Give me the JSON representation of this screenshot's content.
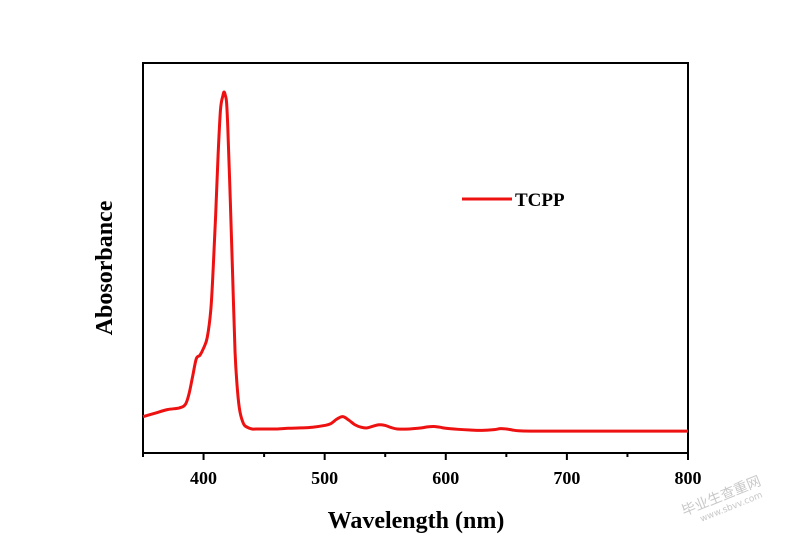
{
  "chart_data": {
    "type": "line",
    "xlabel": "Wavelength (nm)",
    "ylabel": "Abosorbance",
    "xlim": [
      350,
      800
    ],
    "ylim": [
      0,
      1
    ],
    "xticks": [
      400,
      500,
      600,
      700,
      800
    ],
    "yticks_shown": false,
    "grid": false,
    "legend_position": "top-right",
    "series": [
      {
        "name": "TCPP",
        "color": "#ee1111",
        "x": [
          350,
          360,
          370,
          380,
          385,
          388,
          391,
          394,
          397,
          400,
          403,
          406,
          408,
          410,
          412,
          414,
          416,
          417,
          418,
          419,
          420,
          422,
          424,
          426,
          428,
          430,
          433,
          436,
          440,
          445,
          450,
          460,
          470,
          480,
          490,
          500,
          505,
          510,
          515,
          520,
          525,
          530,
          535,
          540,
          545,
          550,
          555,
          560,
          570,
          580,
          585,
          590,
          595,
          600,
          610,
          620,
          630,
          640,
          645,
          650,
          655,
          660,
          670,
          680,
          700,
          720,
          750,
          780,
          800
        ],
        "y": [
          0.075,
          0.085,
          0.095,
          0.1,
          0.11,
          0.14,
          0.19,
          0.24,
          0.25,
          0.27,
          0.3,
          0.38,
          0.5,
          0.65,
          0.82,
          0.95,
          0.99,
          1.0,
          0.99,
          0.97,
          0.9,
          0.7,
          0.48,
          0.26,
          0.15,
          0.09,
          0.055,
          0.045,
          0.04,
          0.04,
          0.04,
          0.04,
          0.042,
          0.043,
          0.045,
          0.05,
          0.055,
          0.068,
          0.075,
          0.065,
          0.052,
          0.045,
          0.043,
          0.048,
          0.052,
          0.05,
          0.044,
          0.04,
          0.04,
          0.043,
          0.046,
          0.047,
          0.045,
          0.042,
          0.039,
          0.037,
          0.036,
          0.038,
          0.041,
          0.04,
          0.037,
          0.035,
          0.034,
          0.034,
          0.034,
          0.034,
          0.034,
          0.034,
          0.034
        ]
      }
    ]
  },
  "watermark": {
    "text": "毕业生查重网",
    "subtext": "www.sbvv.com"
  }
}
